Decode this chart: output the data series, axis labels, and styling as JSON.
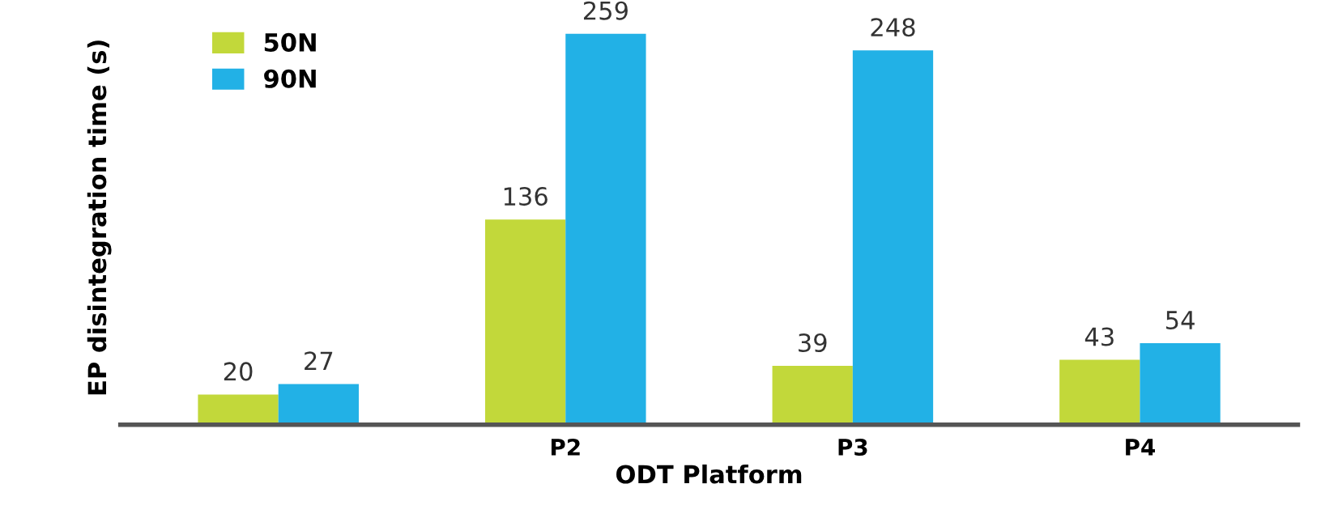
{
  "chart_data": {
    "type": "bar",
    "xlabel": "ODT Platform",
    "ylabel": "EP disintegration time (s)",
    "categories": [
      null,
      "P2",
      "P3",
      "P4"
    ],
    "series": [
      {
        "name": "50N",
        "color": "#c2d83a",
        "values": [
          20,
          136,
          39,
          43
        ]
      },
      {
        "name": "90N",
        "color": "#22b1e6",
        "values": [
          27,
          259,
          248,
          54
        ]
      }
    ],
    "data_labels": true,
    "legend": "top left",
    "grid": false
  }
}
